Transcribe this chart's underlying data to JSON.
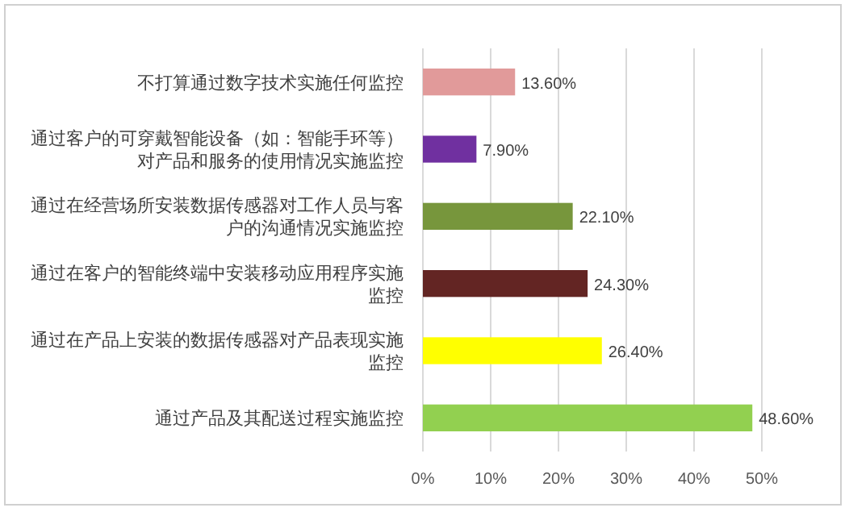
{
  "chart_data": {
    "type": "bar",
    "orientation": "horizontal",
    "categories": [
      "不打算通过数字技术实施任何监控",
      "通过客户的可穿戴智能设备（如：智能手环等）对产品和服务的使用情况实施监控",
      "通过在经营场所安装数据传感器对工作人员与客户的沟通情况实施监控",
      "通过在客户的智能终端中安装移动应用程序实施监控",
      "通过在产品上安装的数据传感器对产品表现实施监控",
      "通过产品及其配送过程实施监控"
    ],
    "values": [
      13.6,
      7.9,
      22.1,
      24.3,
      26.4,
      48.6
    ],
    "value_labels": [
      "13.60%",
      "7.90%",
      "22.10%",
      "24.30%",
      "26.40%",
      "48.60%"
    ],
    "colors": [
      "#e19a9a",
      "#7030a0",
      "#77963c",
      "#632523",
      "#ffff00",
      "#92d050"
    ],
    "xlim": [
      0,
      50
    ],
    "xticks": [
      {
        "value": 0,
        "label": "0%"
      },
      {
        "value": 10,
        "label": "10%"
      },
      {
        "value": 20,
        "label": "20%"
      },
      {
        "value": 30,
        "label": "30%"
      },
      {
        "value": 40,
        "label": "40%"
      },
      {
        "value": 50,
        "label": "50%"
      }
    ],
    "grid": "x"
  }
}
